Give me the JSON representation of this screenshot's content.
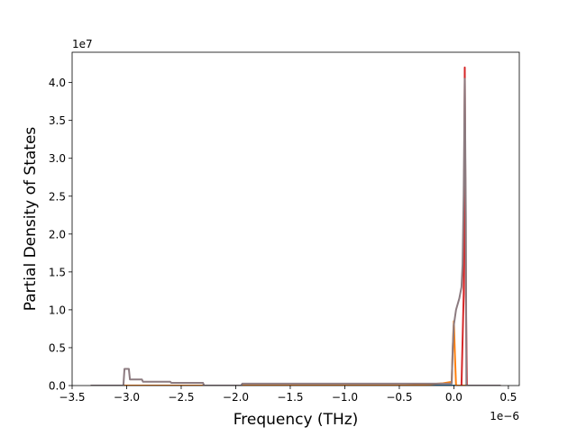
{
  "chart_data": {
    "type": "line",
    "xlabel": "Frequency (THz)",
    "ylabel": "Partial Density of States",
    "x_offset_label": "1e−6",
    "y_offset_label": "1e7",
    "xlim": [
      -3.5e-06,
      6e-07
    ],
    "ylim": [
      0,
      44000000.0
    ],
    "x_ticks": [
      -3.5e-06,
      -3e-06,
      -2.5e-06,
      -2e-06,
      -1.5e-06,
      -1e-06,
      -5e-07,
      0.0,
      5e-07
    ],
    "x_tick_labels": [
      "−3.5",
      "−3.0",
      "−2.5",
      "−2.0",
      "−1.5",
      "−1.0",
      "−0.5",
      "0.0",
      "0.5"
    ],
    "y_ticks": [
      0,
      5000000.0,
      10000000.0,
      15000000.0,
      20000000.0,
      25000000.0,
      30000000.0,
      35000000.0,
      40000000.0
    ],
    "y_tick_labels": [
      "0.0",
      "0.5",
      "1.0",
      "1.5",
      "2.0",
      "2.5",
      "3.0",
      "3.5",
      "4.0"
    ],
    "grid": false,
    "series": [
      {
        "color": "#1f77b4",
        "points": [
          [
            -3.33e-06,
            0
          ],
          [
            4.3e-07,
            0
          ]
        ]
      },
      {
        "color": "#ff7f0e",
        "points": [
          [
            -3.33e-06,
            0
          ],
          [
            -2.3e-06,
            0
          ],
          [
            -1.95e-06,
            0
          ],
          [
            -4.5e-07,
            0
          ],
          [
            -3e-07,
            100000.0
          ],
          [
            -1e-07,
            300000.0
          ],
          [
            -2e-08,
            500000.0
          ],
          [
            -5e-09,
            7000000.0
          ],
          [
            0.0,
            8500000.0
          ],
          [
            1e-08,
            4000000.0
          ],
          [
            2e-08,
            0
          ],
          [
            4.3e-07,
            0
          ]
        ]
      },
      {
        "color": "#d62728",
        "points": [
          [
            7e-08,
            0
          ],
          [
            9e-08,
            12000000.0
          ],
          [
            1e-07,
            42000000.0
          ],
          [
            1.1e-07,
            12000000.0
          ],
          [
            1.2e-07,
            0
          ]
        ]
      },
      {
        "color": "#8c7b80",
        "points": [
          [
            -3.33e-06,
            0
          ],
          [
            -3.03e-06,
            0
          ],
          [
            -3.02e-06,
            2200000.0
          ],
          [
            -2.98e-06,
            2200000.0
          ],
          [
            -2.97e-06,
            800000.0
          ],
          [
            -2.86e-06,
            800000.0
          ],
          [
            -2.85e-06,
            500000.0
          ],
          [
            -2.6e-06,
            500000.0
          ],
          [
            -2.59e-06,
            350000.0
          ],
          [
            -2.3e-06,
            350000.0
          ],
          [
            -2.29e-06,
            0
          ],
          [
            -1.95e-06,
            0
          ],
          [
            -1.94e-06,
            250000.0
          ],
          [
            -2e-08,
            250000.0
          ],
          [
            -1e-08,
            5000000.0
          ],
          [
            0.0,
            8000000.0
          ],
          [
            2e-08,
            10000000.0
          ],
          [
            5e-08,
            11500000.0
          ],
          [
            7e-08,
            13000000.0
          ],
          [
            8e-08,
            16000000.0
          ],
          [
            9e-08,
            25000000.0
          ],
          [
            1e-07,
            40500000.0
          ],
          [
            1.1e-07,
            22000000.0
          ],
          [
            1.15e-07,
            0
          ],
          [
            4.3e-07,
            0
          ]
        ]
      }
    ]
  }
}
